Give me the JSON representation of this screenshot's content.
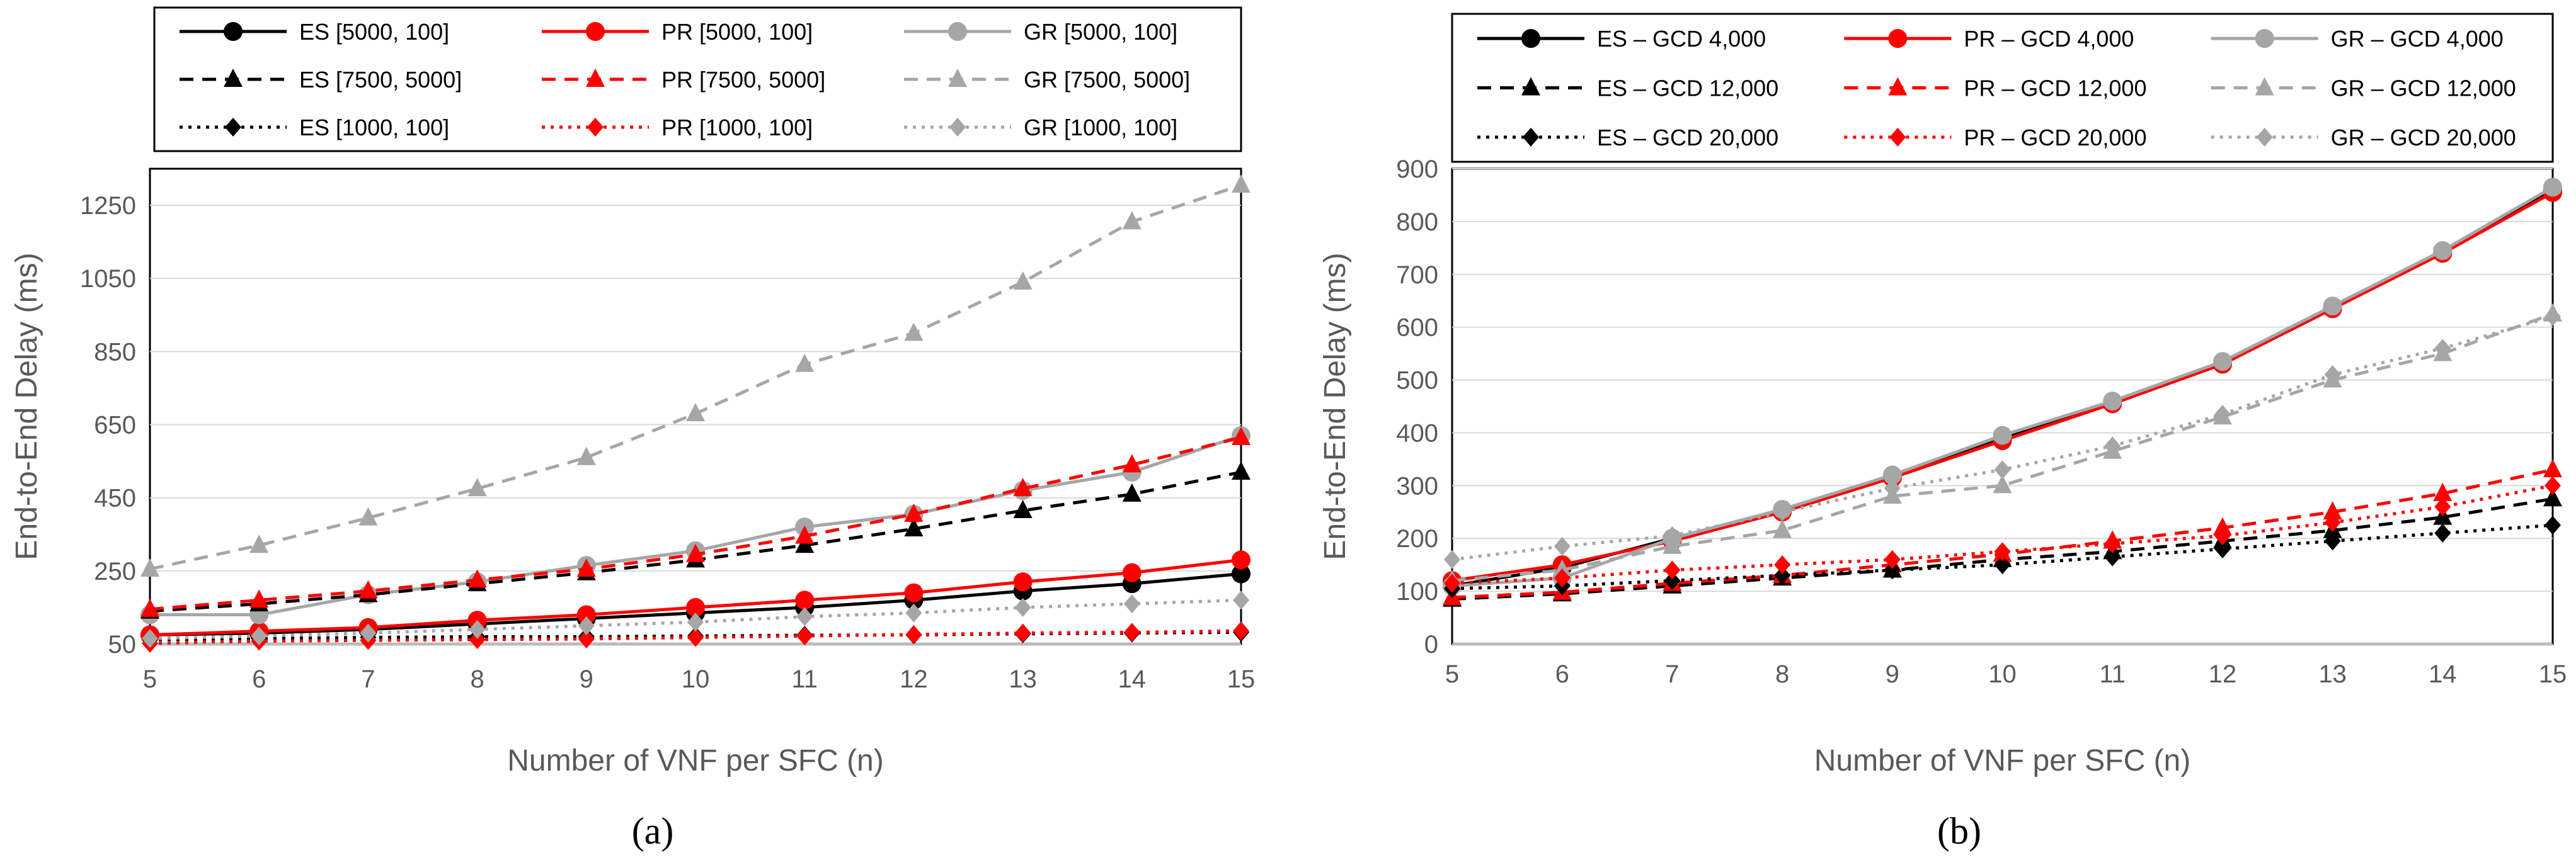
{
  "chart_data": [
    {
      "panel_label": "(a)",
      "type": "line",
      "xlabel": "Number of VNF per SFC (n)",
      "ylabel": "End-to-End Delay (ms)",
      "x": [
        5,
        6,
        7,
        8,
        9,
        10,
        11,
        12,
        13,
        14,
        15
      ],
      "xlim": [
        5,
        15
      ],
      "ylim": [
        50,
        1350
      ],
      "yticks": [
        50,
        250,
        450,
        650,
        850,
        1050,
        1250
      ],
      "gridlines": "horizontal",
      "legend_position": "top",
      "series": [
        {
          "name": "ES [5000, 100]",
          "color": "#000000",
          "dash": "solid",
          "marker": "circle",
          "values": [
            75,
            80,
            90,
            105,
            120,
            135,
            150,
            170,
            195,
            215,
            242
          ]
        },
        {
          "name": "PR [5000, 100]",
          "color": "#ff0000",
          "dash": "solid",
          "marker": "circle",
          "values": [
            75,
            85,
            95,
            115,
            130,
            150,
            170,
            190,
            220,
            245,
            280
          ]
        },
        {
          "name": "GR [5000, 100]",
          "color": "#a6a6a6",
          "dash": "solid",
          "marker": "circle",
          "values": [
            130,
            130,
            185,
            220,
            265,
            305,
            370,
            405,
            470,
            520,
            620
          ]
        },
        {
          "name": "ES [7500, 5000]",
          "color": "#000000",
          "dash": "dashed",
          "marker": "triangle",
          "values": [
            140,
            160,
            185,
            215,
            245,
            280,
            320,
            365,
            415,
            460,
            520
          ]
        },
        {
          "name": "PR [7500, 5000]",
          "color": "#ff0000",
          "dash": "dashed",
          "marker": "triangle",
          "values": [
            145,
            170,
            195,
            225,
            255,
            295,
            345,
            405,
            475,
            540,
            615
          ]
        },
        {
          "name": "GR [7500, 5000]",
          "color": "#a6a6a6",
          "dash": "dashed",
          "marker": "triangle",
          "values": [
            255,
            320,
            395,
            475,
            560,
            680,
            815,
            900,
            1040,
            1205,
            1305
          ]
        },
        {
          "name": "ES [1000, 100]",
          "color": "#000000",
          "dash": "dotted",
          "marker": "diamond",
          "values": [
            62,
            65,
            68,
            70,
            70,
            72,
            74,
            75,
            78,
            80,
            82
          ]
        },
        {
          "name": "PR [1000, 100]",
          "color": "#ff0000",
          "dash": "dotted",
          "marker": "diamond",
          "values": [
            52,
            58,
            60,
            62,
            64,
            68,
            72,
            76,
            80,
            82,
            86
          ]
        },
        {
          "name": "GR [1000, 100]",
          "color": "#a6a6a6",
          "dash": "dotted",
          "marker": "diamond",
          "values": [
            65,
            72,
            80,
            90,
            100,
            110,
            125,
            135,
            150,
            160,
            170
          ]
        }
      ]
    },
    {
      "panel_label": "(b)",
      "type": "line",
      "xlabel": "Number of VNF per SFC (n)",
      "ylabel": "End-to-End Delay (ms)",
      "x": [
        5,
        6,
        7,
        8,
        9,
        10,
        11,
        12,
        13,
        14,
        15
      ],
      "xlim": [
        5,
        15
      ],
      "ylim": [
        0,
        900
      ],
      "yticks": [
        0,
        100,
        200,
        300,
        400,
        500,
        600,
        700,
        800,
        900
      ],
      "gridlines": "horizontal",
      "legend_position": "top",
      "series": [
        {
          "name": "ES – GCD 4,000",
          "color": "#000000",
          "dash": "solid",
          "marker": "circle",
          "values": [
            110,
            145,
            200,
            250,
            315,
            390,
            455,
            530,
            635,
            740,
            860
          ]
        },
        {
          "name": "PR – GCD 4,000",
          "color": "#ff0000",
          "dash": "solid",
          "marker": "circle",
          "values": [
            120,
            150,
            195,
            250,
            315,
            385,
            455,
            530,
            635,
            740,
            855
          ]
        },
        {
          "name": "GR – GCD 4,000",
          "color": "#a6a6a6",
          "dash": "solid",
          "marker": "circle",
          "values": [
            110,
            125,
            200,
            255,
            320,
            395,
            460,
            535,
            640,
            745,
            865
          ]
        },
        {
          "name": "ES – GCD 12,000",
          "color": "#000000",
          "dash": "dashed",
          "marker": "triangle",
          "values": [
            85,
            95,
            110,
            125,
            140,
            160,
            175,
            195,
            215,
            240,
            275
          ]
        },
        {
          "name": "PR – GCD 12,000",
          "color": "#ff0000",
          "dash": "dashed",
          "marker": "triangle",
          "values": [
            88,
            98,
            115,
            130,
            150,
            170,
            195,
            220,
            250,
            285,
            330
          ]
        },
        {
          "name": "GR – GCD 12,000",
          "color": "#a6a6a6",
          "dash": "dashed",
          "marker": "triangle",
          "values": [
            120,
            140,
            185,
            215,
            280,
            300,
            365,
            430,
            500,
            550,
            625
          ]
        },
        {
          "name": "ES – GCD 20,000",
          "color": "#000000",
          "dash": "dotted",
          "marker": "diamond",
          "values": [
            105,
            110,
            120,
            130,
            140,
            150,
            165,
            180,
            195,
            210,
            225
          ]
        },
        {
          "name": "PR – GCD 20,000",
          "color": "#ff0000",
          "dash": "dotted",
          "marker": "diamond",
          "values": [
            115,
            125,
            140,
            150,
            160,
            175,
            190,
            205,
            230,
            260,
            300
          ]
        },
        {
          "name": "GR – GCD 20,000",
          "color": "#a6a6a6",
          "dash": "dotted",
          "marker": "diamond",
          "values": [
            160,
            185,
            205,
            250,
            295,
            330,
            375,
            435,
            510,
            560,
            620
          ]
        }
      ]
    }
  ]
}
